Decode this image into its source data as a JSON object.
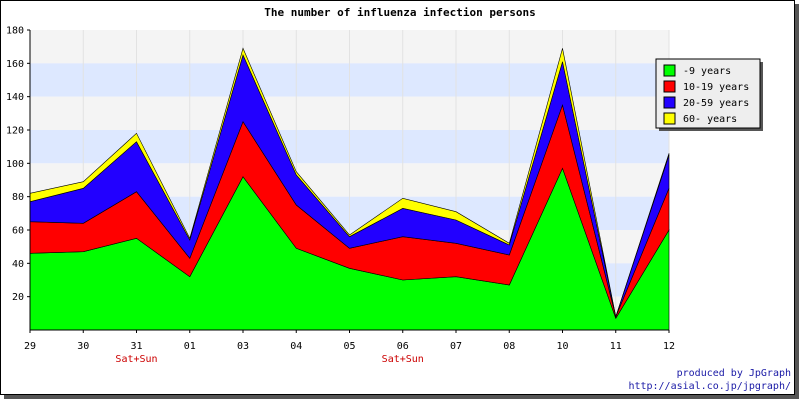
{
  "chart_data": {
    "type": "area",
    "stacked": true,
    "title": "The number of influenza infection persons",
    "categories": [
      "29",
      "30",
      "31",
      "01",
      "03",
      "04",
      "05",
      "06",
      "07",
      "08",
      "10",
      "11",
      "12"
    ],
    "category_notes": [
      "",
      "",
      "Sat+Sun",
      "",
      "",
      "",
      "",
      "Sat+Sun",
      "",
      "",
      "",
      "",
      ""
    ],
    "ylim": [
      0,
      180
    ],
    "yticks": [
      20,
      40,
      60,
      80,
      100,
      120,
      140,
      160,
      180
    ],
    "grid": true,
    "legend_position": "top-right",
    "series": [
      {
        "name": "-9 years",
        "color": "#00ff00",
        "values": [
          46,
          47,
          55,
          32,
          92,
          49,
          37,
          30,
          32,
          27,
          97,
          7,
          60
        ]
      },
      {
        "name": "10-19 years",
        "color": "#ff0000",
        "values": [
          19,
          17,
          28,
          11,
          33,
          26,
          12,
          26,
          20,
          18,
          38,
          1,
          25
        ]
      },
      {
        "name": "20-59 years",
        "color": "#2200ff",
        "values": [
          12,
          21,
          30,
          11,
          40,
          18,
          7,
          17,
          14,
          6,
          26,
          0,
          20
        ]
      },
      {
        "name": "60- years",
        "color": "#ffff00",
        "values": [
          5,
          4,
          5,
          1,
          4,
          2,
          1,
          6,
          5,
          1,
          8,
          0,
          1
        ]
      }
    ]
  },
  "credits": {
    "line1": "produced by JpGraph",
    "line2": "http://asial.co.jp/jpgraph/"
  }
}
